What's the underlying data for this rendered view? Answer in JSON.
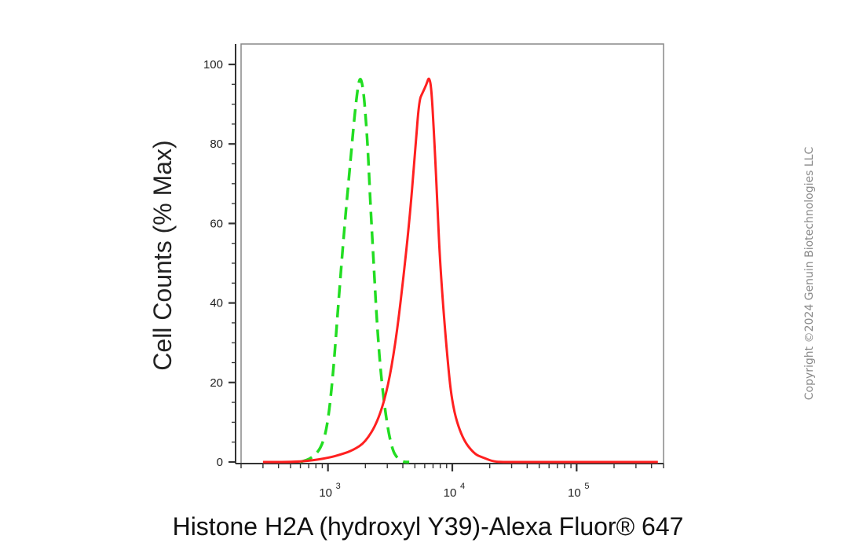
{
  "chart_data": {
    "type": "line",
    "ylabel": "Cell Counts (% Max)",
    "xlabel": "Histone H2A (hydroxyl Y39)-Alexa Fluor® 647",
    "x_scale": "log",
    "xlim": [
      200,
      500000
    ],
    "ylim": [
      0,
      105
    ],
    "y_ticks": [
      "0",
      "20",
      "40",
      "60",
      "80",
      "100"
    ],
    "y_tick_values": [
      0,
      20,
      40,
      60,
      80,
      100
    ],
    "x_major_ticks": [
      {
        "base": "10",
        "exp": "3",
        "value": 1000
      },
      {
        "base": "10",
        "exp": "4",
        "value": 10000
      },
      {
        "base": "10",
        "exp": "5",
        "value": 100000
      }
    ],
    "series": [
      {
        "color": "#22dd22",
        "style": "dashed",
        "x": [
          600,
          750,
          900,
          1000,
          1100,
          1200,
          1300,
          1400,
          1500,
          1600,
          1700,
          1800,
          1900,
          2000,
          2100,
          2200,
          2350,
          2500,
          2700,
          3000,
          3300,
          3600,
          4000,
          4500
        ],
        "y": [
          0,
          1,
          4,
          10,
          22,
          38,
          52,
          64,
          74,
          84,
          92,
          97,
          95,
          88,
          78,
          64,
          48,
          33,
          20,
          9,
          3,
          1,
          0,
          0
        ]
      },
      {
        "color": "#ff2020",
        "style": "solid",
        "x": [
          300,
          600,
          1000,
          1300,
          1600,
          2000,
          2500,
          3000,
          3500,
          4000,
          4500,
          5000,
          5400,
          5800,
          6200,
          6500,
          6800,
          7200,
          7600,
          8000,
          9000,
          10000,
          12000,
          15000,
          18000,
          22000,
          30000,
          60000,
          150000,
          450000
        ],
        "y": [
          0,
          0,
          1,
          2,
          3,
          5,
          10,
          18,
          30,
          45,
          60,
          77,
          91,
          93,
          95,
          97,
          94,
          80,
          64,
          49,
          28,
          14,
          6,
          2,
          1,
          0,
          0,
          0,
          0,
          0
        ]
      }
    ]
  },
  "copyright": "Copyright ©2024 Genuin Biotechnologies LLC"
}
